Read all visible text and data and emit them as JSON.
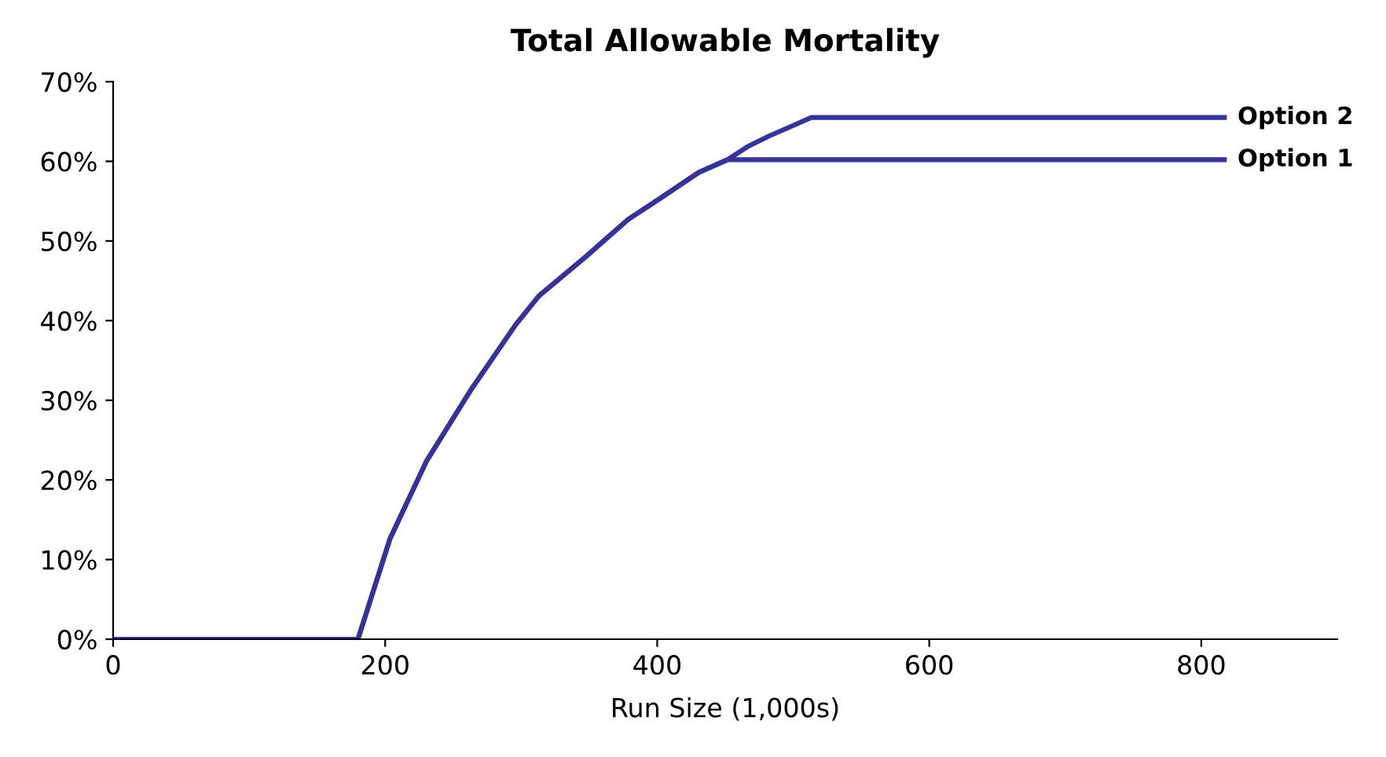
{
  "chart_data": {
    "type": "line",
    "title": "Total Allowable Mortality",
    "xlabel": "Run Size (1,000s)",
    "xlim": [
      0,
      900
    ],
    "xticks": [
      0,
      200,
      400,
      600,
      800
    ],
    "ylim": [
      0,
      70
    ],
    "yticks": [
      {
        "value": 0,
        "label": "0%"
      },
      {
        "value": 10,
        "label": "10%"
      },
      {
        "value": 20,
        "label": "20%"
      },
      {
        "value": 30,
        "label": "30%"
      },
      {
        "value": 40,
        "label": "40%"
      },
      {
        "value": 50,
        "label": "50%"
      },
      {
        "value": 60,
        "label": "60%"
      },
      {
        "value": 70,
        "label": "70%"
      }
    ],
    "grid": false,
    "legend": false,
    "marker": "none",
    "line_style": "solid",
    "series": [
      {
        "name": "Option 2",
        "color": "#333399",
        "x": [
          0,
          180,
          203.5,
          230.5,
          263,
          296,
          313,
          348,
          378.6,
          401.7,
          430.5,
          451.7,
          467,
          482.5,
          513.4,
          817
        ],
        "values": [
          0,
          0,
          12.6,
          22.4,
          31.3,
          39.5,
          43.1,
          48.1,
          52.7,
          55.3,
          58.6,
          60.2,
          61.9,
          63.2,
          65.5,
          65.5
        ]
      },
      {
        "name": "Option 1",
        "color": "#333399",
        "x": [
          0,
          180,
          203.5,
          230.5,
          263,
          296,
          313,
          348,
          378.6,
          401.7,
          430.5,
          451.7,
          817
        ],
        "values": [
          0,
          0,
          12.6,
          22.4,
          31.3,
          39.5,
          43.1,
          48.1,
          52.7,
          55.3,
          58.6,
          60.2,
          60.2
        ]
      }
    ]
  }
}
